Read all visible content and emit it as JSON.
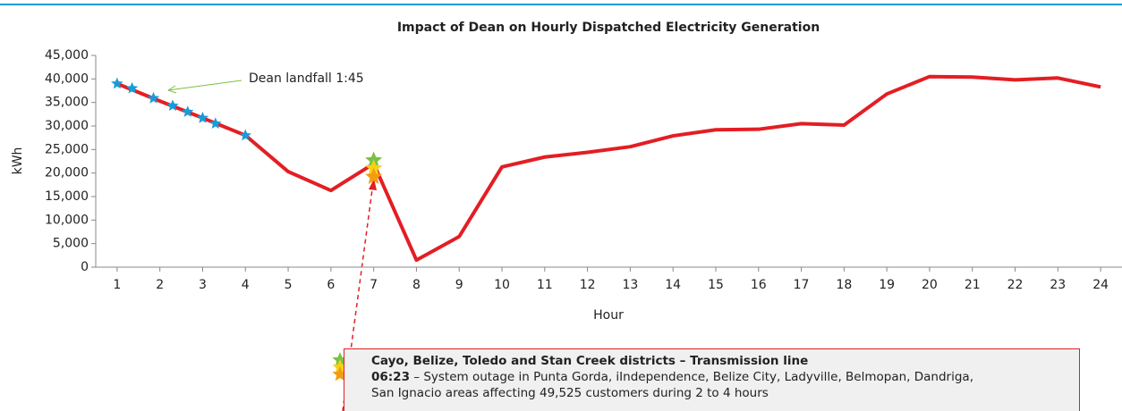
{
  "chart_data": {
    "type": "line",
    "title": "Impact of Dean on Hourly Dispatched Electricity Generation",
    "xlabel": "Hour",
    "ylabel": "kWh",
    "x": [
      1,
      2,
      3,
      4,
      5,
      6,
      7,
      8,
      9,
      10,
      11,
      12,
      13,
      14,
      15,
      16,
      17,
      18,
      19,
      20,
      21,
      22,
      23,
      24
    ],
    "series": [
      {
        "color": "#e31e24",
        "values": [
          39000,
          35300,
          31700,
          28000,
          20300,
          16300,
          22000,
          1500,
          6500,
          21300,
          23400,
          24400,
          25600,
          27900,
          29200,
          29300,
          30500,
          30200,
          36800,
          40500,
          40400,
          39800,
          40200,
          38300
        ]
      }
    ],
    "stars": [
      {
        "color": "#1a9bd7",
        "x": [
          1,
          1.35,
          1.85,
          2.3,
          2.65,
          3,
          3.3,
          4
        ],
        "values": [
          39000,
          38000,
          35900,
          34300,
          33000,
          31700,
          30500,
          28000
        ]
      },
      {
        "color": "#7ac143",
        "x": [
          7
        ],
        "values": [
          22700
        ]
      },
      {
        "color": "#f7d117",
        "x": [
          7
        ],
        "values": [
          21000
        ]
      },
      {
        "color": "#f39c12",
        "x": [
          7
        ],
        "values": [
          19200
        ]
      }
    ],
    "xlim": [
      0.5,
      24.5
    ],
    "xticks": [
      1,
      2,
      3,
      4,
      5,
      6,
      7,
      8,
      9,
      10,
      11,
      12,
      13,
      14,
      15,
      16,
      17,
      18,
      19,
      20,
      21,
      22,
      23,
      24
    ],
    "ylim": [
      0,
      45000
    ],
    "yticks": [
      0,
      {
        "value": 5000,
        "label": "5,000"
      },
      {
        "value": 10000,
        "label": "10,000"
      },
      {
        "value": 15000,
        "label": "15,000"
      },
      {
        "value": 20000,
        "label": "20,000"
      },
      {
        "value": 25000,
        "label": "25,000"
      },
      {
        "value": 30000,
        "label": "30,000"
      },
      {
        "value": 35000,
        "label": "35,000"
      },
      {
        "value": 40000,
        "label": "40,000"
      },
      {
        "value": 45000,
        "label": "45,000"
      }
    ],
    "annotations": [
      {
        "text": "Dean landfall 1:45"
      }
    ],
    "callout": {
      "title": "Cayo, Belize, Toledo and Stan Creek districts – Transmission line",
      "time": "06:23",
      "lines": [
        "– System outage in Punta Gorda, iIndependence, Belize City, Ladyville, Belmopan, Dandriga,",
        "San Ignacio areas affecting 49,525 customers during 2 to 4 hours"
      ]
    }
  }
}
